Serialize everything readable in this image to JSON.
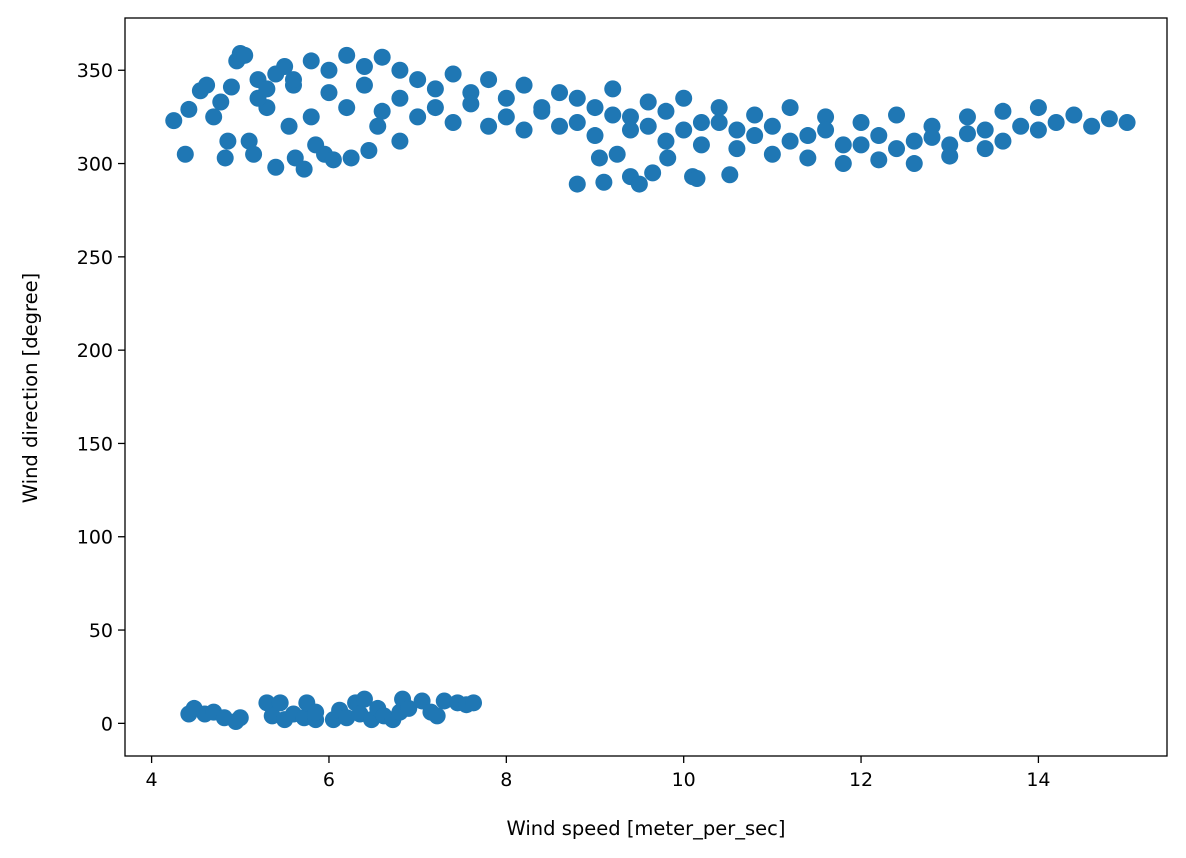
{
  "chart_data": {
    "type": "scatter",
    "title": "",
    "xlabel": "Wind speed [meter_per_sec]",
    "ylabel": "Wind direction [degree]",
    "xlim": [
      3.7,
      15.45
    ],
    "ylim": [
      -17.5,
      378
    ],
    "xticks": [
      4,
      6,
      8,
      10,
      12,
      14
    ],
    "yticks": [
      0,
      50,
      100,
      150,
      200,
      250,
      300,
      350
    ],
    "grid": false,
    "legend": "none",
    "marker_color": "#1f77b4",
    "series": [
      {
        "points": [
          [
            4.25,
            323
          ],
          [
            4.38,
            305
          ],
          [
            4.42,
            329
          ],
          [
            4.55,
            339
          ],
          [
            4.62,
            342
          ],
          [
            4.7,
            325
          ],
          [
            4.78,
            333
          ],
          [
            4.83,
            303
          ],
          [
            4.86,
            312
          ],
          [
            4.9,
            341
          ],
          [
            4.96,
            355
          ],
          [
            5.0,
            359
          ],
          [
            5.05,
            358
          ],
          [
            5.1,
            312
          ],
          [
            5.15,
            305
          ],
          [
            5.2,
            345
          ],
          [
            5.3,
            330
          ],
          [
            5.4,
            298
          ],
          [
            5.5,
            352
          ],
          [
            5.55,
            320
          ],
          [
            5.62,
            303
          ],
          [
            5.72,
            297
          ],
          [
            5.85,
            310
          ],
          [
            5.95,
            305
          ],
          [
            6.05,
            302
          ],
          [
            6.25,
            303
          ],
          [
            6.45,
            307
          ],
          [
            6.55,
            320
          ],
          [
            6.8,
            312
          ],
          [
            5.2,
            335
          ],
          [
            5.3,
            340
          ],
          [
            5.4,
            348
          ],
          [
            5.6,
            342
          ],
          [
            5.8,
            355
          ],
          [
            6.0,
            350
          ],
          [
            6.2,
            358
          ],
          [
            6.4,
            352
          ],
          [
            6.6,
            357
          ],
          [
            6.8,
            350
          ],
          [
            7.0,
            345
          ],
          [
            7.2,
            340
          ],
          [
            7.4,
            348
          ],
          [
            7.6,
            338
          ],
          [
            7.8,
            345
          ],
          [
            8.0,
            335
          ],
          [
            8.2,
            342
          ],
          [
            8.4,
            330
          ],
          [
            8.6,
            338
          ],
          [
            8.8,
            335
          ],
          [
            9.0,
            330
          ],
          [
            9.2,
            340
          ],
          [
            9.4,
            325
          ],
          [
            9.6,
            333
          ],
          [
            9.8,
            328
          ],
          [
            10.0,
            335
          ],
          [
            10.2,
            322
          ],
          [
            10.4,
            330
          ],
          [
            10.6,
            318
          ],
          [
            10.8,
            326
          ],
          [
            11.0,
            320
          ],
          [
            11.2,
            330
          ],
          [
            11.4,
            315
          ],
          [
            11.6,
            325
          ],
          [
            11.8,
            310
          ],
          [
            12.0,
            322
          ],
          [
            12.2,
            315
          ],
          [
            12.4,
            326
          ],
          [
            12.6,
            312
          ],
          [
            12.8,
            320
          ],
          [
            13.0,
            310
          ],
          [
            13.2,
            325
          ],
          [
            13.4,
            318
          ],
          [
            13.6,
            328
          ],
          [
            13.8,
            320
          ],
          [
            14.0,
            330
          ],
          [
            14.2,
            322
          ],
          [
            14.4,
            326
          ],
          [
            14.6,
            320
          ],
          [
            14.8,
            324
          ],
          [
            15.0,
            322
          ],
          [
            5.8,
            325
          ],
          [
            6.2,
            330
          ],
          [
            6.6,
            328
          ],
          [
            7.0,
            325
          ],
          [
            7.4,
            322
          ],
          [
            7.8,
            320
          ],
          [
            8.2,
            318
          ],
          [
            8.6,
            320
          ],
          [
            9.0,
            315
          ],
          [
            9.4,
            318
          ],
          [
            9.8,
            312
          ],
          [
            10.2,
            310
          ],
          [
            10.6,
            308
          ],
          [
            11.0,
            305
          ],
          [
            11.4,
            303
          ],
          [
            11.8,
            300
          ],
          [
            12.2,
            302
          ],
          [
            12.6,
            300
          ],
          [
            13.0,
            304
          ],
          [
            13.4,
            308
          ],
          [
            5.6,
            345
          ],
          [
            6.0,
            338
          ],
          [
            6.4,
            342
          ],
          [
            6.8,
            335
          ],
          [
            7.2,
            330
          ],
          [
            7.6,
            332
          ],
          [
            8.0,
            325
          ],
          [
            8.4,
            328
          ],
          [
            8.8,
            322
          ],
          [
            9.2,
            326
          ],
          [
            9.6,
            320
          ],
          [
            10.0,
            318
          ],
          [
            10.4,
            322
          ],
          [
            10.8,
            315
          ],
          [
            11.2,
            312
          ],
          [
            11.6,
            318
          ],
          [
            12.0,
            310
          ],
          [
            12.4,
            308
          ],
          [
            12.8,
            314
          ],
          [
            13.2,
            316
          ],
          [
            13.6,
            312
          ],
          [
            14.0,
            318
          ],
          [
            8.8,
            289
          ],
          [
            9.05,
            303
          ],
          [
            9.1,
            290
          ],
          [
            9.25,
            305
          ],
          [
            9.4,
            293
          ],
          [
            9.5,
            289
          ],
          [
            9.65,
            295
          ],
          [
            9.82,
            303
          ],
          [
            10.1,
            293
          ],
          [
            10.15,
            292
          ],
          [
            10.52,
            294
          ],
          [
            4.42,
            5
          ],
          [
            4.48,
            8
          ],
          [
            4.6,
            5
          ],
          [
            4.7,
            6
          ],
          [
            4.82,
            3
          ],
          [
            4.95,
            1
          ],
          [
            5.0,
            3
          ],
          [
            5.3,
            11
          ],
          [
            5.36,
            4
          ],
          [
            5.45,
            11
          ],
          [
            5.5,
            2
          ],
          [
            5.6,
            5
          ],
          [
            5.72,
            3
          ],
          [
            5.75,
            11
          ],
          [
            5.85,
            2
          ],
          [
            5.85,
            6
          ],
          [
            6.05,
            2
          ],
          [
            6.12,
            7
          ],
          [
            6.2,
            3
          ],
          [
            6.3,
            11
          ],
          [
            6.35,
            5
          ],
          [
            6.4,
            13
          ],
          [
            6.48,
            2
          ],
          [
            6.55,
            8
          ],
          [
            6.62,
            4
          ],
          [
            6.72,
            2
          ],
          [
            6.8,
            6
          ],
          [
            6.83,
            13
          ],
          [
            6.9,
            8
          ],
          [
            7.05,
            12
          ],
          [
            7.15,
            6
          ],
          [
            7.22,
            4
          ],
          [
            7.3,
            12
          ],
          [
            7.45,
            11
          ],
          [
            7.55,
            10
          ],
          [
            7.63,
            11
          ]
        ]
      }
    ]
  }
}
